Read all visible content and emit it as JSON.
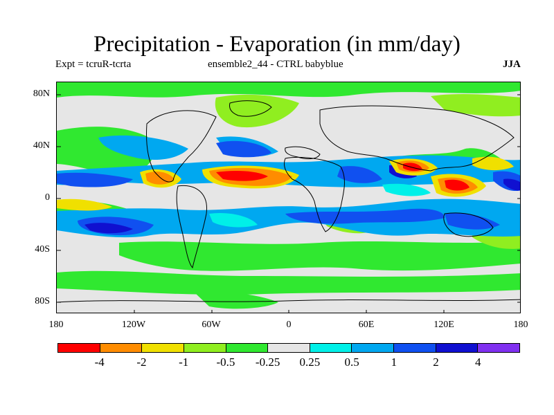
{
  "title": "Precipitation - Evaporation (in mm/day)",
  "subtitle_left": "Expt = tcruR-tcrta",
  "subtitle_center": "ensemble2_44 - CTRL babyblue",
  "season": "JJA",
  "axes": {
    "y_ticks": [
      "80N",
      "40N",
      "0",
      "40S",
      "80S"
    ],
    "x_ticks": [
      "180",
      "120W",
      "60W",
      "0",
      "60E",
      "120E",
      "180"
    ]
  },
  "colorbar": {
    "colors": [
      "#ff0000",
      "#ff8c00",
      "#f0e000",
      "#90ee20",
      "#30e830",
      "#e6e6e6",
      "#00f0e8",
      "#00a8f0",
      "#1050f0",
      "#1010d0",
      "#8030f0"
    ],
    "labels": [
      "-4",
      "-2",
      "-1",
      "-0.5",
      "-0.25",
      "0.25",
      "0.5",
      "1",
      "2",
      "4"
    ]
  },
  "icons": [
    "coastline-outline"
  ]
}
